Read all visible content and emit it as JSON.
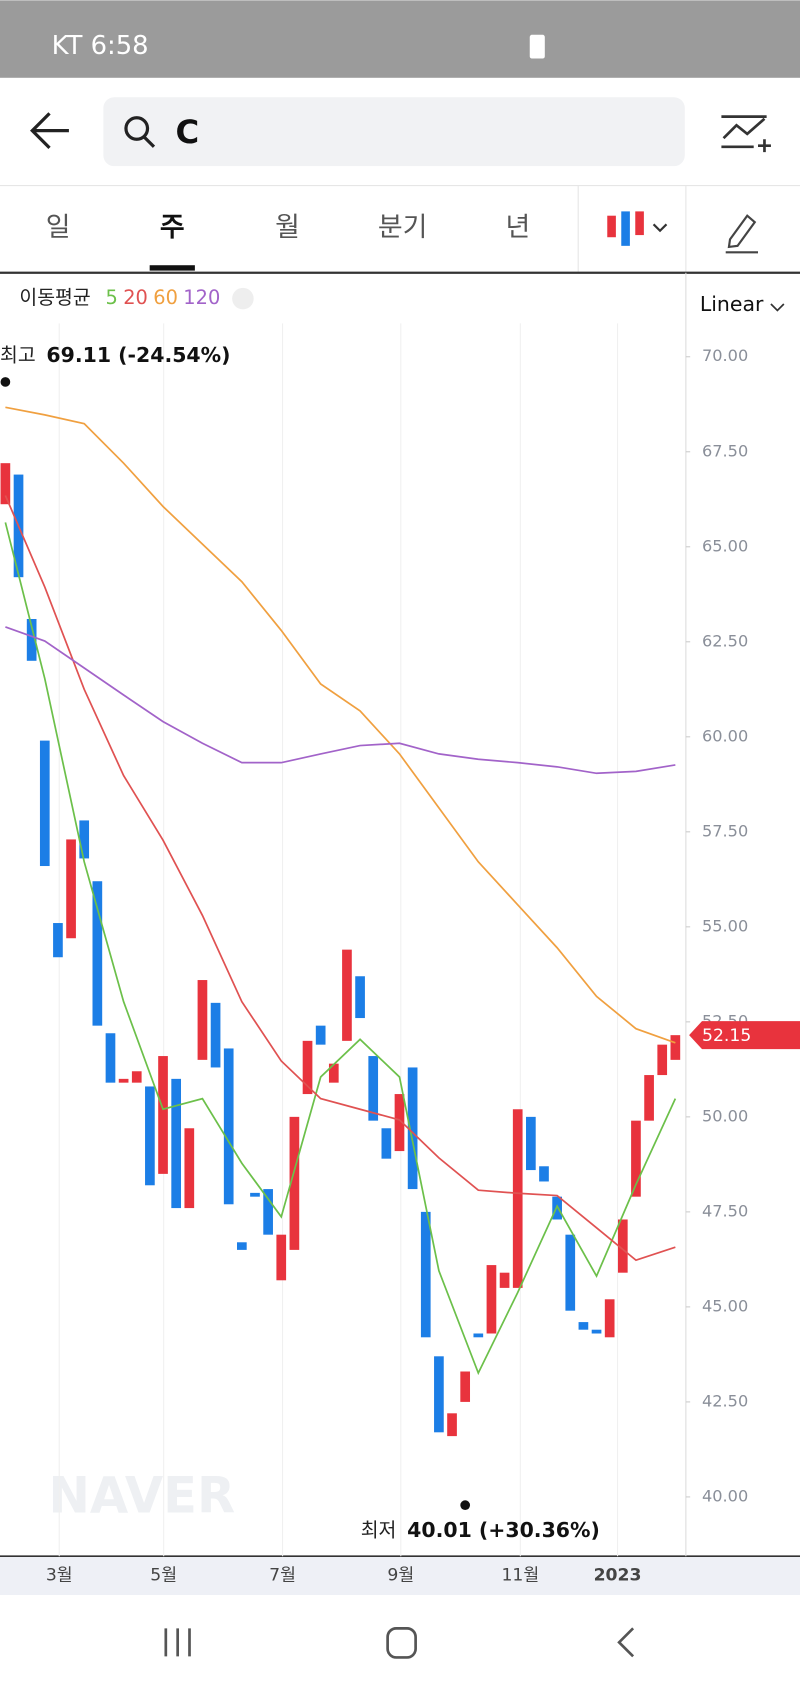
{
  "status_bar": {
    "carrier_time": "KT 6:58"
  },
  "search": {
    "query": "C"
  },
  "tabs": [
    "일",
    "주",
    "월",
    "분기",
    "년"
  ],
  "active_tab": 1,
  "chart_data": {
    "type": "candlestick",
    "x": [
      0,
      1,
      2,
      3,
      4,
      5,
      6,
      7,
      8,
      9,
      10,
      11,
      12,
      13,
      14,
      15,
      16,
      17,
      18,
      19,
      20,
      21,
      22,
      23,
      24,
      25,
      26,
      27,
      28,
      29,
      30,
      31,
      32,
      33,
      34,
      35,
      36,
      37,
      38,
      39,
      40,
      41,
      42,
      43,
      44,
      45,
      46,
      47,
      48,
      49,
      50,
      51
    ],
    "open": [
      66.12,
      66.9,
      63.1,
      59.9,
      55.1,
      54.7,
      57.8,
      56.2,
      52.2,
      50.9,
      50.9,
      50.8,
      48.5,
      51.0,
      47.6,
      51.5,
      53.0,
      51.8,
      46.7,
      48.0,
      48.1,
      45.7,
      46.5,
      50.6,
      52.4,
      50.9,
      52.0,
      53.7,
      51.6,
      49.7,
      49.1,
      51.3,
      47.5,
      43.7,
      41.6,
      42.5,
      44.3,
      44.3,
      45.5,
      45.5,
      50.0,
      48.7,
      47.9,
      46.9,
      44.6,
      44.4,
      44.2,
      45.9,
      47.9,
      49.9,
      51.1,
      51.5
    ],
    "high": {
      "label": "최고",
      "x": 0,
      "value": 69.11,
      "text": "69.11 (-24.54%)"
    },
    "low": {
      "label": "최저",
      "x": 35,
      "value": 40.01,
      "text": "40.01 (+30.36%)"
    },
    "close": [
      67.2,
      64.2,
      62.0,
      56.6,
      54.2,
      57.3,
      56.8,
      52.4,
      50.9,
      51.0,
      51.2,
      48.2,
      51.6,
      47.6,
      49.7,
      53.6,
      51.3,
      47.7,
      46.5,
      47.9,
      46.9,
      46.9,
      50.0,
      52.0,
      51.9,
      51.4,
      54.4,
      52.6,
      49.9,
      48.9,
      50.6,
      48.1,
      44.2,
      41.7,
      42.2,
      43.3,
      44.2,
      46.1,
      45.9,
      50.2,
      48.6,
      48.3,
      47.3,
      44.9,
      44.4,
      44.3,
      45.2,
      47.3,
      49.9,
      51.1,
      51.9,
      52.15
    ],
    "up_color": "#e8333d",
    "down_color": "#1c7ee6",
    "legend_title": "이동평균",
    "lines_x": [
      0,
      3,
      6,
      9,
      12,
      15,
      18,
      21,
      24,
      27,
      30,
      33,
      36,
      39,
      42,
      45,
      48,
      51
    ],
    "lines": [
      {
        "name": "5",
        "color": "#6cc04a",
        "values": [
          65.64,
          61.53,
          56.71,
          53.03,
          50.2,
          50.48,
          48.78,
          47.37,
          51.05,
          52.04,
          51.05,
          45.95,
          43.26,
          45.38,
          47.65,
          45.81,
          48.22,
          50.48
        ]
      },
      {
        "name": "20",
        "color": "#e05252",
        "values": [
          66.35,
          63.94,
          61.25,
          58.98,
          57.28,
          55.3,
          53.03,
          51.47,
          50.48,
          50.2,
          49.92,
          48.92,
          48.07,
          47.99,
          47.93,
          47.08,
          46.23,
          46.57
        ]
      },
      {
        "name": "60",
        "color": "#f0a040",
        "values": [
          68.67,
          68.47,
          68.24,
          67.2,
          66.06,
          65.07,
          64.08,
          62.8,
          61.39,
          60.68,
          59.55,
          58.13,
          56.71,
          55.58,
          54.45,
          53.17,
          52.32,
          51.95
        ]
      },
      {
        "name": "120",
        "color": "#a263c9",
        "values": [
          62.89,
          62.52,
          61.81,
          61.1,
          60.4,
          59.83,
          59.32,
          59.32,
          59.55,
          59.77,
          59.83,
          59.55,
          59.41,
          59.32,
          59.21,
          59.04,
          59.09,
          59.26
        ]
      }
    ],
    "scale_label": "Linear",
    "xlim": [
      -0.41,
      51.8
    ],
    "ylim": [
      38.44,
      72.21
    ],
    "xticks": [
      {
        "value": 4.1,
        "label": "3월"
      },
      {
        "value": 12.05,
        "label": "5월"
      },
      {
        "value": 21.1,
        "label": "7월"
      },
      {
        "value": 30.1,
        "label": "9월"
      },
      {
        "value": 39.2,
        "label": "11월"
      },
      {
        "value": 46.6,
        "label": "2023"
      }
    ],
    "yticks": [
      {
        "value": 40,
        "label": "40.00"
      },
      {
        "value": 42.5,
        "label": "42.50"
      },
      {
        "value": 45,
        "label": "45.00"
      },
      {
        "value": 47.5,
        "label": "47.50"
      },
      {
        "value": 50,
        "label": "50.00"
      },
      {
        "value": 52.5,
        "label": "52.50"
      },
      {
        "value": 55,
        "label": "55.00"
      },
      {
        "value": 57.5,
        "label": "57.50"
      },
      {
        "value": 60,
        "label": "60.00"
      },
      {
        "value": 62.5,
        "label": "62.50"
      },
      {
        "value": 65,
        "label": "65.00"
      },
      {
        "value": 67.5,
        "label": "67.50"
      },
      {
        "value": 70,
        "label": "70.00"
      }
    ],
    "last_price": 52.15,
    "watermark": "NAVER"
  }
}
